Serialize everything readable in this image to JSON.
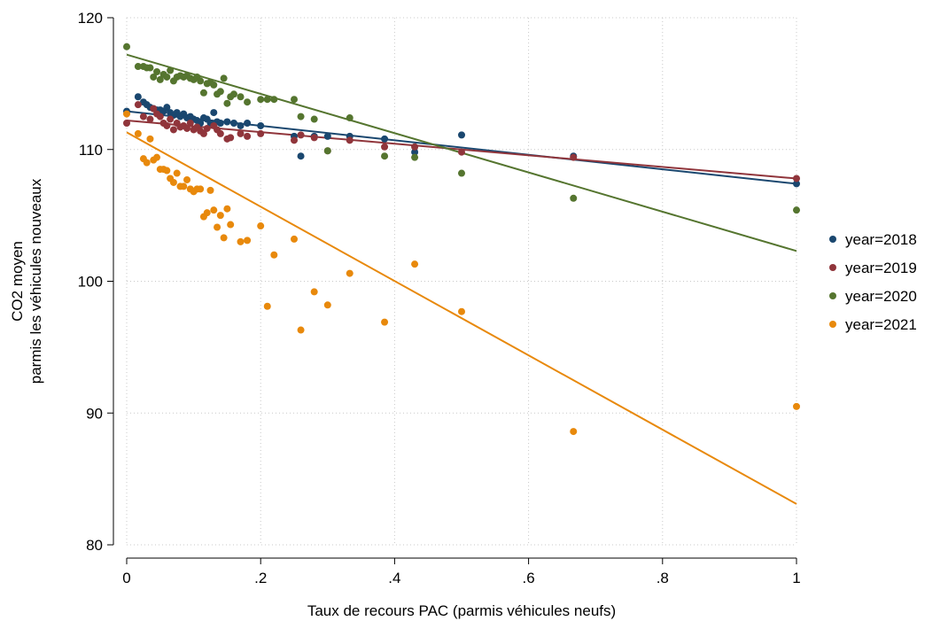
{
  "chart_data": {
    "type": "scatter",
    "title": "",
    "xlabel": "Taux de recours PAC (parmis véhicules neufs)",
    "ylabel": [
      "CO2 moyen",
      "parmis les véhicules nouveaux"
    ],
    "xlim": [
      0,
      1
    ],
    "ylim": [
      80,
      120
    ],
    "xticks": [
      0,
      0.2,
      0.4,
      0.6,
      0.8,
      1
    ],
    "xtick_labels": [
      "0",
      ".2",
      ".4",
      ".6",
      ".8",
      "1"
    ],
    "yticks": [
      80,
      90,
      100,
      110,
      120
    ],
    "ytick_labels": [
      "80",
      "90",
      "100",
      "110",
      "120"
    ],
    "grid": true,
    "legend_position": "right",
    "series": [
      {
        "name": "year=2018",
        "color": "#1a476f",
        "fit": {
          "x0": 0,
          "y0": 112.9,
          "x1": 1,
          "y1": 107.4
        },
        "points": [
          [
            0,
            112.9
          ],
          [
            0.017,
            114.0
          ],
          [
            0.025,
            113.6
          ],
          [
            0.03,
            113.4
          ],
          [
            0.035,
            113.2
          ],
          [
            0.04,
            113.1
          ],
          [
            0.045,
            113.0
          ],
          [
            0.05,
            113.0
          ],
          [
            0.055,
            112.9
          ],
          [
            0.06,
            113.2
          ],
          [
            0.065,
            112.8
          ],
          [
            0.07,
            112.6
          ],
          [
            0.075,
            112.8
          ],
          [
            0.08,
            112.5
          ],
          [
            0.085,
            112.7
          ],
          [
            0.09,
            112.4
          ],
          [
            0.095,
            112.5
          ],
          [
            0.1,
            112.3
          ],
          [
            0.105,
            112.2
          ],
          [
            0.11,
            112.0
          ],
          [
            0.115,
            112.4
          ],
          [
            0.12,
            112.3
          ],
          [
            0.125,
            112.0
          ],
          [
            0.13,
            112.8
          ],
          [
            0.135,
            112.1
          ],
          [
            0.14,
            112.0
          ],
          [
            0.15,
            112.1
          ],
          [
            0.16,
            112.0
          ],
          [
            0.17,
            111.8
          ],
          [
            0.18,
            112.0
          ],
          [
            0.2,
            111.8
          ],
          [
            0.25,
            111.0
          ],
          [
            0.26,
            109.5
          ],
          [
            0.28,
            111.0
          ],
          [
            0.3,
            111.0
          ],
          [
            0.333,
            111.0
          ],
          [
            0.385,
            110.8
          ],
          [
            0.43,
            109.8
          ],
          [
            0.5,
            111.1
          ],
          [
            0.667,
            109.5
          ],
          [
            1,
            107.4
          ]
        ]
      },
      {
        "name": "year=2019",
        "color": "#90353b",
        "fit": {
          "x0": 0,
          "y0": 112.2,
          "x1": 1,
          "y1": 107.8
        },
        "points": [
          [
            0,
            112.0
          ],
          [
            0.017,
            113.4
          ],
          [
            0.025,
            112.5
          ],
          [
            0.035,
            112.3
          ],
          [
            0.04,
            113.1
          ],
          [
            0.045,
            112.7
          ],
          [
            0.05,
            112.5
          ],
          [
            0.055,
            112.0
          ],
          [
            0.06,
            111.8
          ],
          [
            0.065,
            112.3
          ],
          [
            0.07,
            111.5
          ],
          [
            0.075,
            112.0
          ],
          [
            0.08,
            111.7
          ],
          [
            0.085,
            111.8
          ],
          [
            0.09,
            111.6
          ],
          [
            0.095,
            112.0
          ],
          [
            0.1,
            111.5
          ],
          [
            0.105,
            111.7
          ],
          [
            0.11,
            111.4
          ],
          [
            0.115,
            111.2
          ],
          [
            0.12,
            111.6
          ],
          [
            0.13,
            111.8
          ],
          [
            0.135,
            111.5
          ],
          [
            0.14,
            111.2
          ],
          [
            0.15,
            110.8
          ],
          [
            0.155,
            110.9
          ],
          [
            0.17,
            111.2
          ],
          [
            0.18,
            111.0
          ],
          [
            0.2,
            111.2
          ],
          [
            0.25,
            110.7
          ],
          [
            0.26,
            111.1
          ],
          [
            0.28,
            110.9
          ],
          [
            0.3,
            109.9
          ],
          [
            0.333,
            110.7
          ],
          [
            0.385,
            110.2
          ],
          [
            0.43,
            110.2
          ],
          [
            0.5,
            109.8
          ],
          [
            0.667,
            109.4
          ],
          [
            1,
            107.8
          ]
        ]
      },
      {
        "name": "year=2020",
        "color": "#55752f",
        "fit": {
          "x0": 0,
          "y0": 117.2,
          "x1": 1,
          "y1": 102.3
        },
        "points": [
          [
            0,
            117.8
          ],
          [
            0.017,
            116.3
          ],
          [
            0.025,
            116.3
          ],
          [
            0.03,
            116.2
          ],
          [
            0.035,
            116.2
          ],
          [
            0.04,
            115.5
          ],
          [
            0.045,
            115.9
          ],
          [
            0.05,
            115.3
          ],
          [
            0.055,
            115.7
          ],
          [
            0.06,
            115.5
          ],
          [
            0.065,
            116.0
          ],
          [
            0.07,
            115.2
          ],
          [
            0.075,
            115.5
          ],
          [
            0.08,
            115.6
          ],
          [
            0.085,
            115.5
          ],
          [
            0.09,
            115.6
          ],
          [
            0.095,
            115.4
          ],
          [
            0.1,
            115.3
          ],
          [
            0.105,
            115.5
          ],
          [
            0.11,
            115.2
          ],
          [
            0.115,
            114.3
          ],
          [
            0.12,
            115.0
          ],
          [
            0.125,
            115.1
          ],
          [
            0.13,
            114.9
          ],
          [
            0.135,
            114.2
          ],
          [
            0.14,
            114.4
          ],
          [
            0.145,
            115.4
          ],
          [
            0.15,
            113.5
          ],
          [
            0.155,
            114.0
          ],
          [
            0.16,
            114.2
          ],
          [
            0.17,
            114.0
          ],
          [
            0.18,
            113.6
          ],
          [
            0.2,
            113.8
          ],
          [
            0.21,
            113.8
          ],
          [
            0.22,
            113.8
          ],
          [
            0.25,
            113.8
          ],
          [
            0.26,
            112.5
          ],
          [
            0.28,
            112.3
          ],
          [
            0.3,
            109.9
          ],
          [
            0.333,
            112.4
          ],
          [
            0.385,
            109.5
          ],
          [
            0.43,
            109.4
          ],
          [
            0.5,
            108.2
          ],
          [
            0.667,
            106.3
          ],
          [
            1,
            105.4
          ]
        ]
      },
      {
        "name": "year=2021",
        "color": "#e8890c",
        "fit": {
          "x0": 0,
          "y0": 111.3,
          "x1": 1,
          "y1": 83.1
        },
        "points": [
          [
            0,
            112.7
          ],
          [
            0.017,
            111.2
          ],
          [
            0.025,
            109.3
          ],
          [
            0.03,
            109.0
          ],
          [
            0.035,
            110.8
          ],
          [
            0.04,
            109.2
          ],
          [
            0.045,
            109.4
          ],
          [
            0.05,
            108.5
          ],
          [
            0.055,
            108.5
          ],
          [
            0.06,
            108.4
          ],
          [
            0.065,
            107.8
          ],
          [
            0.07,
            107.5
          ],
          [
            0.075,
            108.2
          ],
          [
            0.08,
            107.2
          ],
          [
            0.085,
            107.2
          ],
          [
            0.09,
            107.7
          ],
          [
            0.095,
            107.0
          ],
          [
            0.1,
            106.8
          ],
          [
            0.105,
            107.0
          ],
          [
            0.11,
            107.0
          ],
          [
            0.115,
            104.9
          ],
          [
            0.12,
            105.2
          ],
          [
            0.125,
            106.9
          ],
          [
            0.13,
            105.4
          ],
          [
            0.135,
            104.1
          ],
          [
            0.14,
            105.0
          ],
          [
            0.145,
            103.3
          ],
          [
            0.15,
            105.5
          ],
          [
            0.155,
            104.3
          ],
          [
            0.17,
            103.0
          ],
          [
            0.18,
            103.1
          ],
          [
            0.2,
            104.2
          ],
          [
            0.21,
            98.1
          ],
          [
            0.22,
            102.0
          ],
          [
            0.25,
            103.2
          ],
          [
            0.26,
            96.3
          ],
          [
            0.28,
            99.2
          ],
          [
            0.3,
            98.2
          ],
          [
            0.333,
            100.6
          ],
          [
            0.385,
            96.9
          ],
          [
            0.43,
            101.3
          ],
          [
            0.5,
            97.7
          ],
          [
            0.667,
            88.6
          ],
          [
            1,
            90.5
          ]
        ]
      }
    ]
  }
}
